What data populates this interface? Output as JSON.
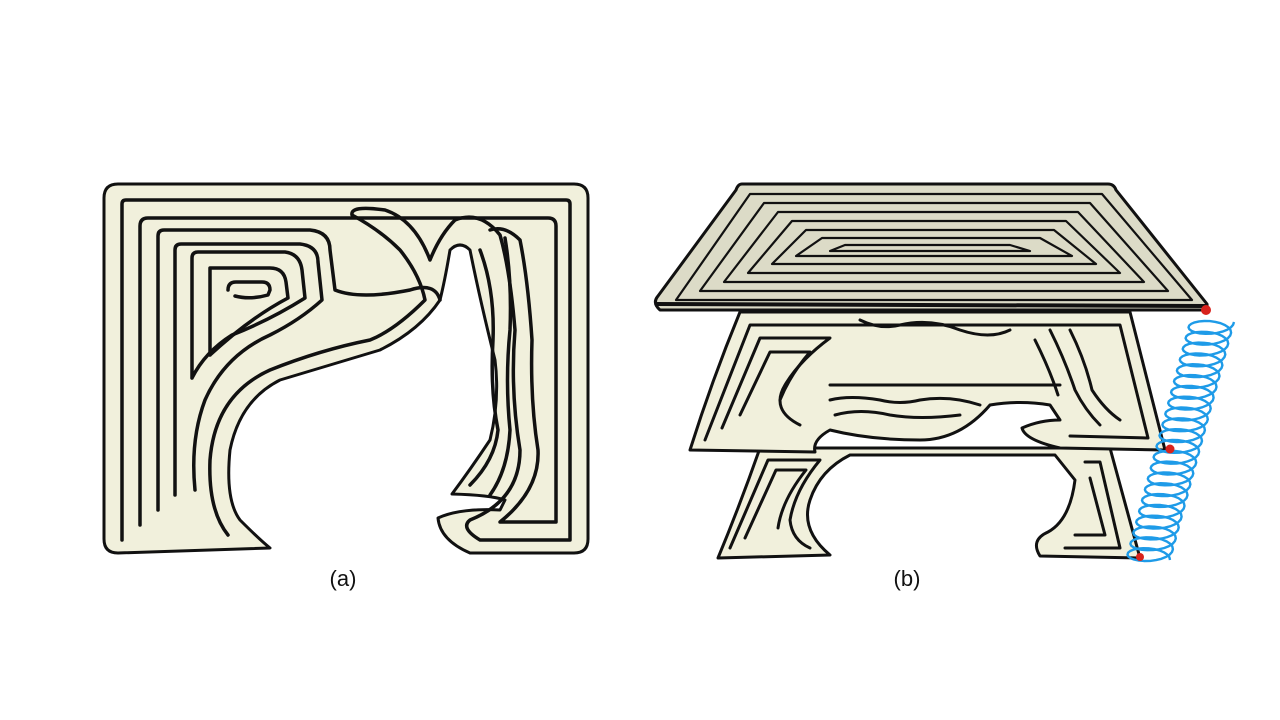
{
  "panels": [
    {
      "label": "(a)"
    },
    {
      "label": "(b)"
    }
  ],
  "colors": {
    "fill": "#f1f0dc",
    "top_layer_fill": "#dcdbc7",
    "outline": "#111111",
    "path": "#111111",
    "spring": "#1e9be8",
    "node": "#d8221c"
  }
}
